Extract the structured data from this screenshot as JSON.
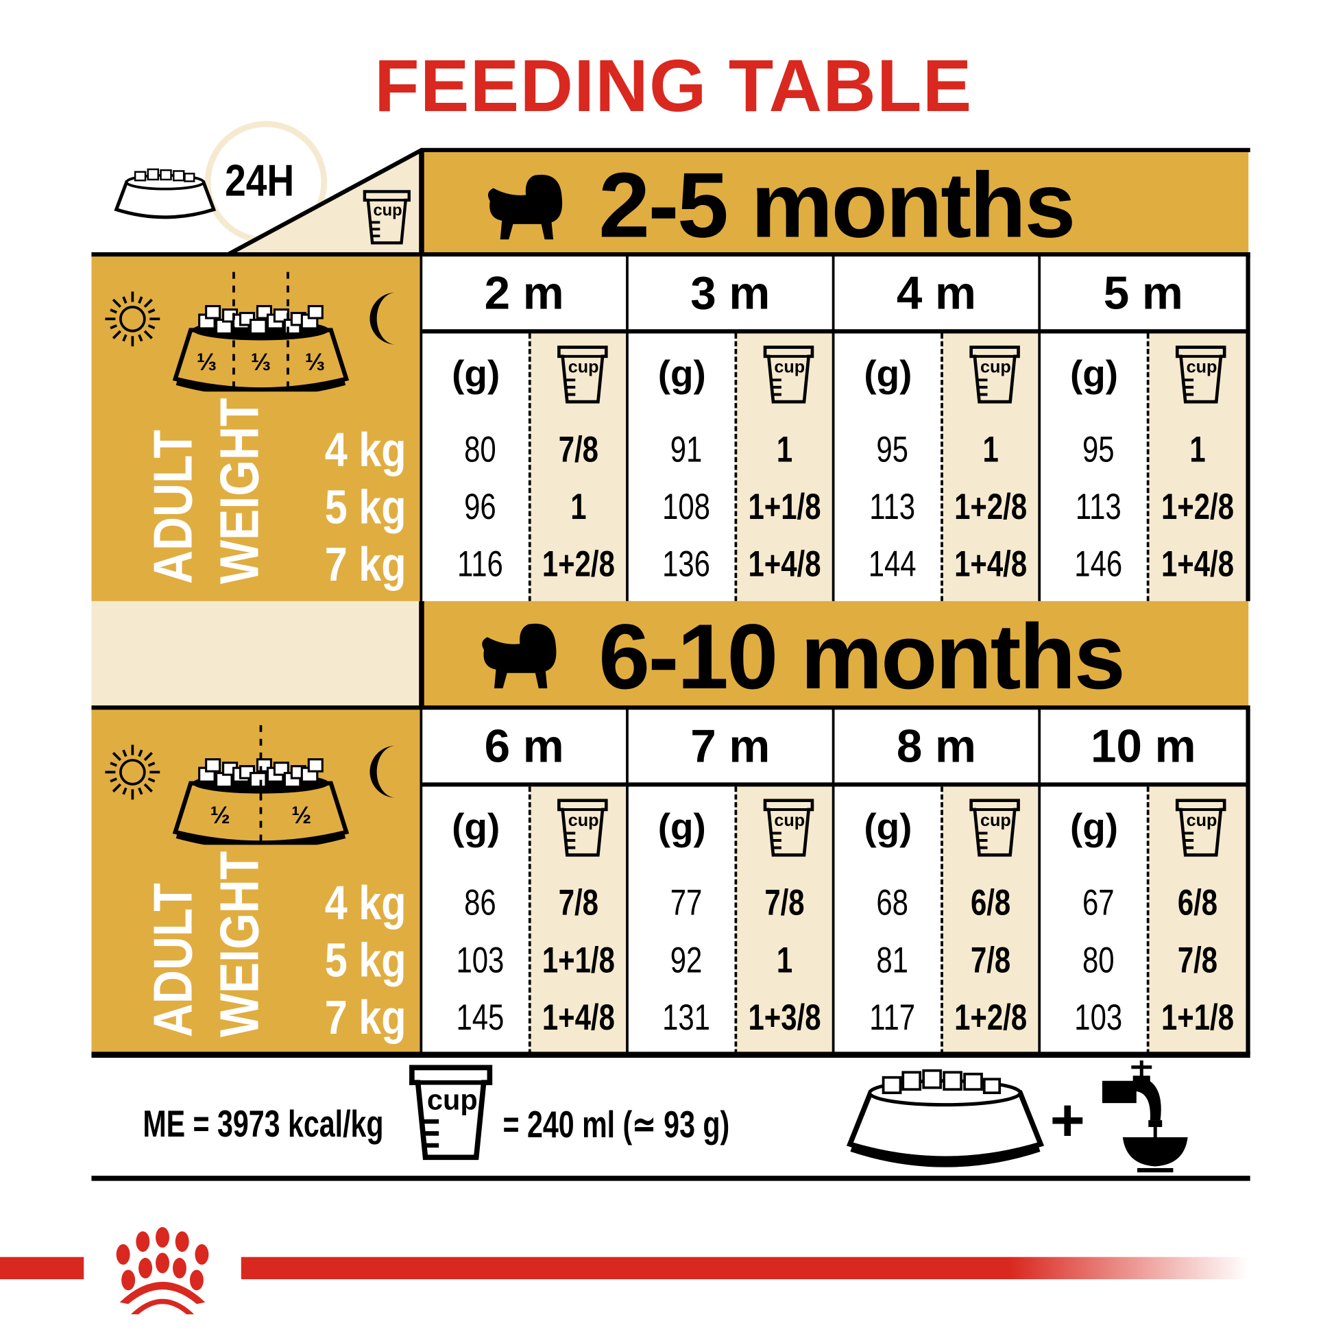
{
  "title": "FEEDING TABLE",
  "header": {
    "duration": "24H",
    "cup_label": "cup"
  },
  "colors": {
    "brand_red": "#d9281f",
    "gold": "#e0ad41",
    "cream": "#f5e9cf"
  },
  "left_panel": {
    "adult": "ADULT",
    "weight": "WEIGHT",
    "weights": [
      "4 kg",
      "5 kg",
      "7 kg"
    ]
  },
  "gram_label": "(g)",
  "sections": [
    {
      "label": "2-5 months",
      "meal_split": [
        "⅓",
        "⅓",
        "⅓"
      ],
      "months": [
        {
          "label": "2 m",
          "grams": [
            "80",
            "96",
            "116"
          ],
          "cups": [
            "7/8",
            "1",
            "1+2/8"
          ]
        },
        {
          "label": "3 m",
          "grams": [
            "91",
            "108",
            "136"
          ],
          "cups": [
            "1",
            "1+1/8",
            "1+4/8"
          ]
        },
        {
          "label": "4 m",
          "grams": [
            "95",
            "113",
            "144"
          ],
          "cups": [
            "1",
            "1+2/8",
            "1+4/8"
          ]
        },
        {
          "label": "5 m",
          "grams": [
            "95",
            "113",
            "146"
          ],
          "cups": [
            "1",
            "1+2/8",
            "1+4/8"
          ]
        }
      ]
    },
    {
      "label": "6-10 months",
      "meal_split": [
        "½",
        "½"
      ],
      "months": [
        {
          "label": "6 m",
          "grams": [
            "86",
            "103",
            "145"
          ],
          "cups": [
            "7/8",
            "1+1/8",
            "1+4/8"
          ]
        },
        {
          "label": "7 m",
          "grams": [
            "77",
            "92",
            "131"
          ],
          "cups": [
            "7/8",
            "1",
            "1+3/8"
          ]
        },
        {
          "label": "8 m",
          "grams": [
            "68",
            "81",
            "117"
          ],
          "cups": [
            "6/8",
            "7/8",
            "1+2/8"
          ]
        },
        {
          "label": "10 m",
          "grams": [
            "67",
            "80",
            "103"
          ],
          "cups": [
            "6/8",
            "7/8",
            "1+1/8"
          ]
        }
      ]
    }
  ],
  "footer": {
    "energy": "ME = 3973 kcal/kg",
    "cup_label": "cup",
    "cup_equivalence": "= 240 ml (≃ 93 g)",
    "plus": "+"
  }
}
